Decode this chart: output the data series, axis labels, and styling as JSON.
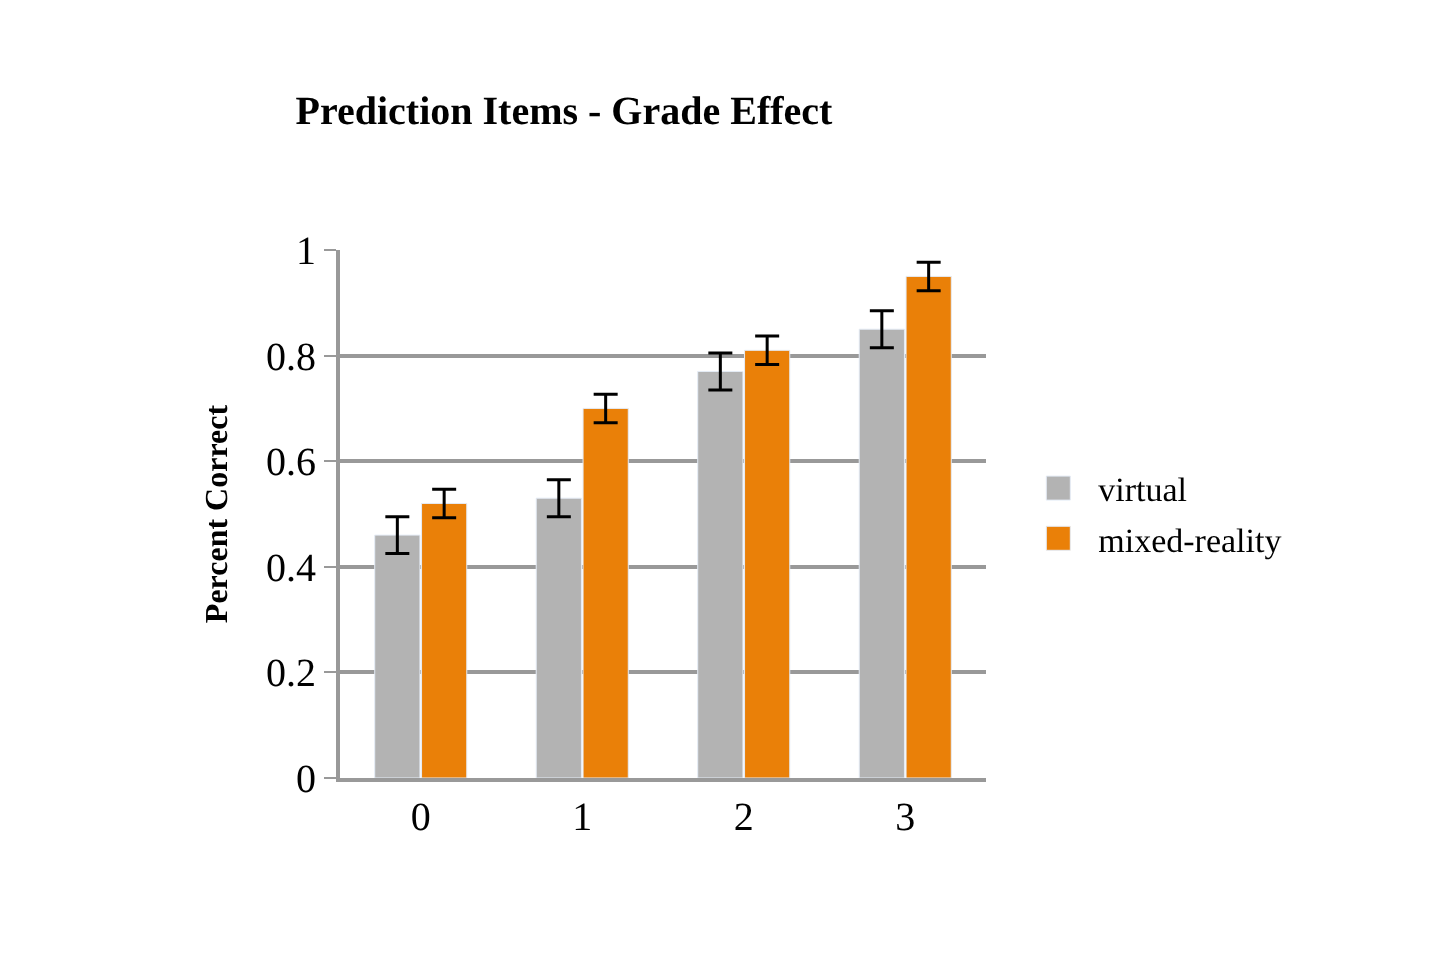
{
  "chart_data": {
    "type": "bar",
    "title": "Prediction Items - Grade Effect",
    "ylabel": "Percent Correct",
    "categories": [
      "0",
      "1",
      "2",
      "3"
    ],
    "series": [
      {
        "name": "virtual",
        "color": "#b3b3b3",
        "values": [
          0.46,
          0.53,
          0.77,
          0.85
        ],
        "errors": [
          0.035,
          0.035,
          0.035,
          0.035
        ]
      },
      {
        "name": "mixed-reality",
        "color": "#ea8008",
        "values": [
          0.52,
          0.7,
          0.81,
          0.95
        ],
        "errors": [
          0.027,
          0.027,
          0.027,
          0.027
        ]
      }
    ],
    "ylim": [
      0,
      1
    ],
    "yticks": [
      0,
      {
        "value": 0.2,
        "label": "0.2"
      },
      {
        "value": 0.4,
        "label": "0.4"
      },
      {
        "value": 0.6,
        "label": "0.6"
      },
      {
        "value": 0.8,
        "label": "0.8"
      },
      1
    ],
    "grid": "y",
    "legend": "right"
  }
}
